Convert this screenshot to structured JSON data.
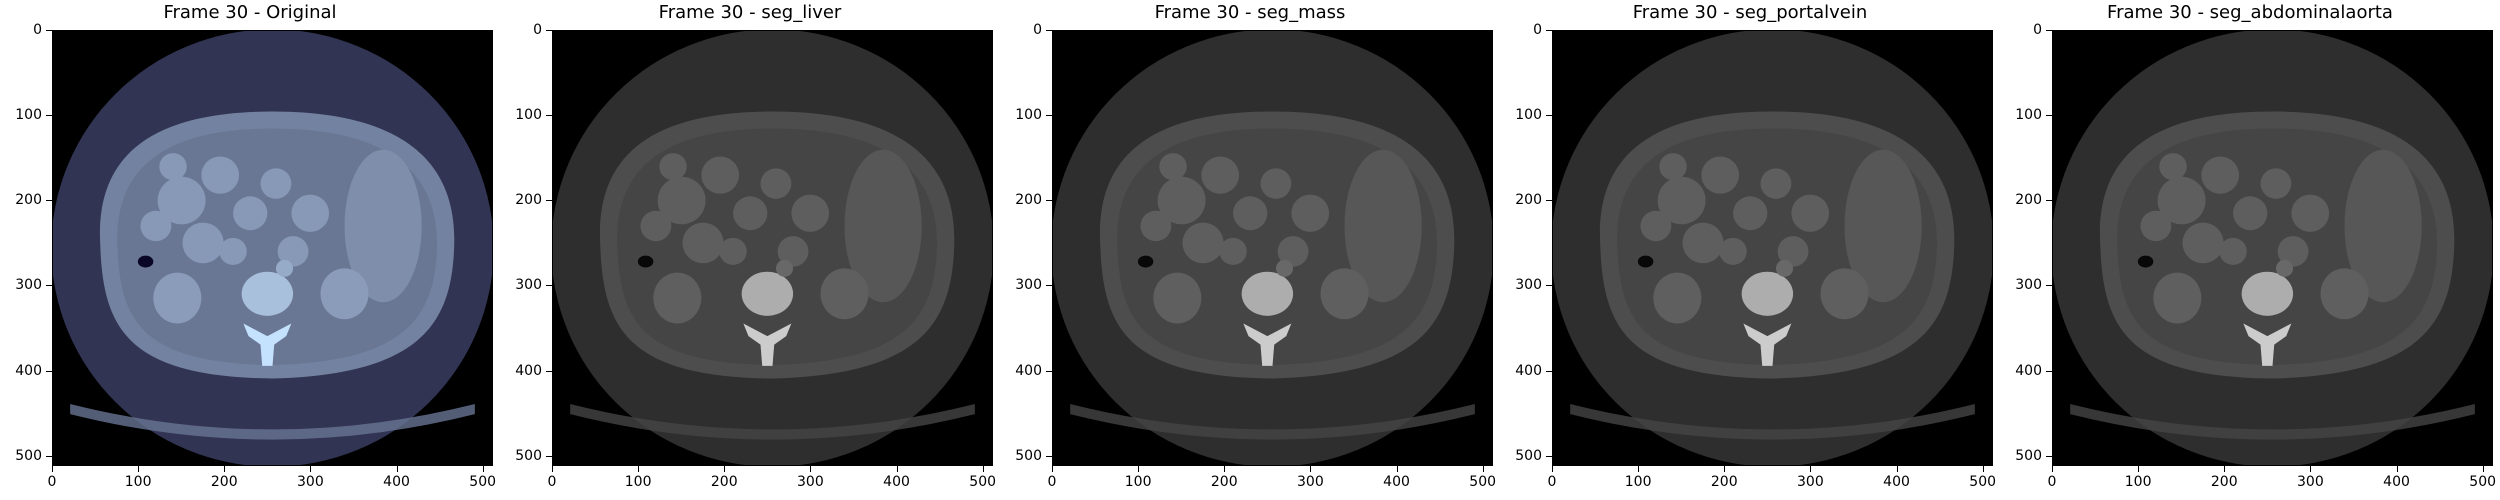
{
  "figure": {
    "panels": [
      {
        "title": "Frame 30 - Original",
        "colormap": "bone"
      },
      {
        "title": "Frame 30 - seg_liver",
        "colormap": "gray"
      },
      {
        "title": "Frame 30 - seg_mass",
        "colormap": "gray"
      },
      {
        "title": "Frame 30 - seg_portalvein",
        "colormap": "gray"
      },
      {
        "title": "Frame 30 - seg_abdominalaorta",
        "colormap": "gray"
      }
    ],
    "x_ticks": [
      "0",
      "100",
      "200",
      "300",
      "400",
      "500"
    ],
    "y_ticks": [
      "0",
      "100",
      "200",
      "300",
      "400",
      "500"
    ],
    "axis_range": [
      0,
      512
    ]
  }
}
